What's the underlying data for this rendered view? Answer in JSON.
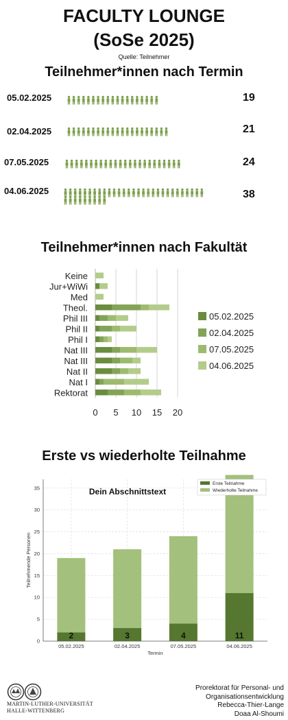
{
  "header": {
    "title_line1": "FACULTY LOUNGE",
    "title_line2": "(SoSe 2025)",
    "source": "Quelle: Teilnehmer"
  },
  "colors": {
    "s1": "#6a8c3f",
    "s2": "#83a457",
    "s3": "#9dbb6f",
    "s4": "#b3cc8b",
    "icon": "#7da04e",
    "dark": "#55772f",
    "light": "#a3c07c"
  },
  "chart_data": [
    {
      "type": "pictogram",
      "title": "Teilnehmer*innen nach Termin",
      "categories": [
        "05.02.2025",
        "02.04.2025",
        "07.05.2025",
        "04.06.2025"
      ],
      "values": [
        19,
        21,
        24,
        38
      ]
    },
    {
      "type": "bar",
      "orientation": "horizontal",
      "stacked": true,
      "title": "Teilnehmer*innen nach Fakultät",
      "categories": [
        "Keine",
        "Jur+WiWi",
        "Med",
        "Theol.",
        "Phil III",
        "Phil II",
        "Phil I",
        "Nat III",
        "Nat III",
        "Nat II",
        "Nat I",
        "Rektorat"
      ],
      "series": [
        {
          "name": "05.02.2025",
          "values": [
            0,
            1,
            0,
            4,
            1,
            1,
            1,
            4,
            4,
            4,
            1,
            3
          ]
        },
        {
          "name": "02.04.2025",
          "values": [
            0,
            0,
            0,
            7,
            2,
            3,
            1,
            2,
            2,
            2,
            1,
            4
          ]
        },
        {
          "name": "07.05.2025",
          "values": [
            0,
            0,
            0,
            2,
            2,
            2,
            1,
            4,
            3,
            2,
            5,
            4
          ]
        },
        {
          "name": "04.06.2025",
          "values": [
            2,
            2,
            2,
            5,
            3,
            4,
            1,
            5,
            2,
            3,
            6,
            5
          ]
        }
      ],
      "xticks": [
        0,
        5,
        10,
        15,
        20
      ],
      "xlim": [
        0,
        20
      ],
      "legend": "right"
    },
    {
      "type": "bar",
      "stacked": true,
      "title": "Erste vs wiederholte Teilnahme",
      "subtitle": "Dein Abschnittstext",
      "categories": [
        "05.02.2025",
        "02.04.2025",
        "07.05.2025",
        "04.06.2025"
      ],
      "series": [
        {
          "name": "Erste Teilnahme",
          "values": [
            2,
            3,
            4,
            11
          ]
        },
        {
          "name": "Wiederholte Teilnahme",
          "values": [
            17,
            18,
            20,
            27
          ]
        }
      ],
      "xlabel": "Termin",
      "ylabel": "Teilnehmende Personen",
      "yticks": [
        0,
        5,
        10,
        15,
        20,
        25,
        30,
        35
      ],
      "ylim": [
        0,
        37
      ],
      "legend": "top-right",
      "grid": true
    }
  ],
  "footer": {
    "university_line1": "MARTIN-LUTHER-UNIVERSITÄT",
    "university_line2": "HALLE-WITTENBERG",
    "credit_line1": "Prorektorat für Personal- und",
    "credit_line2": "Organisationsentwicklung",
    "credit_line3": "Rebecca-Thier-Lange",
    "credit_line4": "Doaa Al-Shoumi"
  }
}
